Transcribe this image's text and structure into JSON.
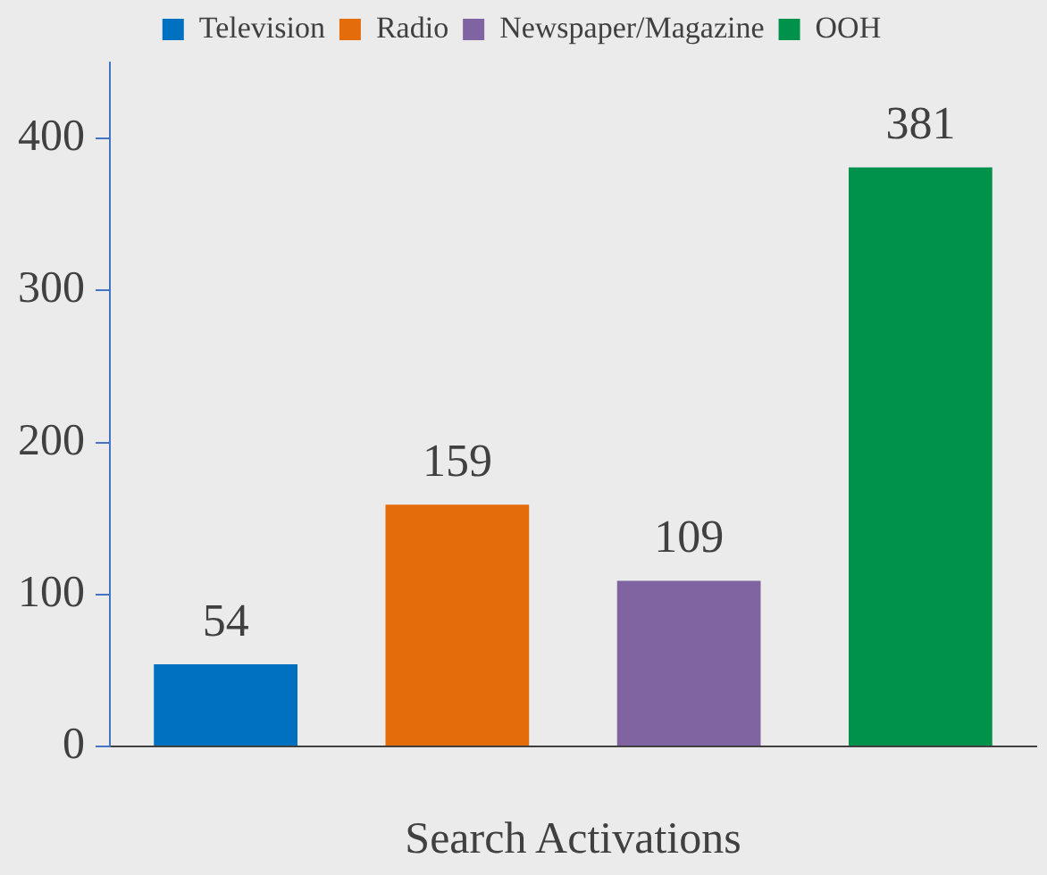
{
  "chart_data": {
    "type": "bar",
    "xlabel": "Search Activations",
    "categories": [
      null,
      null,
      null,
      null
    ],
    "series": [
      {
        "name": "Television",
        "color": "#0070c0",
        "values": [
          54,
          null,
          null,
          null
        ]
      },
      {
        "name": "Radio",
        "color": "#e46c0a",
        "values": [
          null,
          159,
          null,
          null
        ]
      },
      {
        "name": "Newspaper/Magazine",
        "color": "#8064a2",
        "values": [
          null,
          null,
          109,
          null
        ]
      },
      {
        "name": "OOH",
        "color": "#00924a",
        "values": [
          null,
          null,
          null,
          381
        ]
      }
    ],
    "ylim": [
      0,
      450
    ],
    "yticks": [
      0,
      100,
      200,
      300,
      400
    ],
    "grid": false,
    "legend": "top",
    "data_labels": true
  }
}
